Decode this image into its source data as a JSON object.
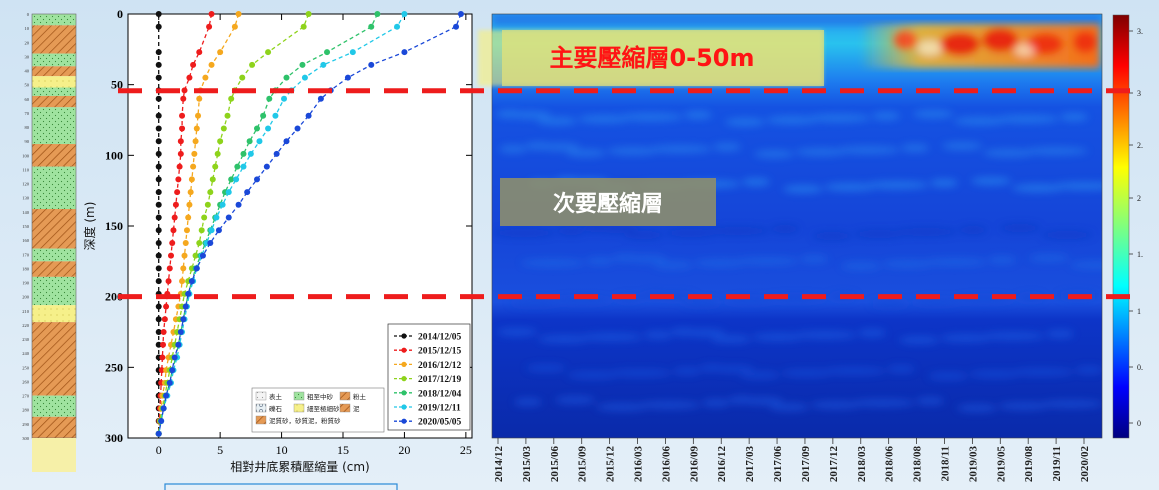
{
  "chart_data": [
    {
      "type": "line",
      "title": "",
      "xlabel": "相對井底累積壓縮量 (cm)",
      "ylabel": "深度 (m)",
      "xlim": [
        -2.5,
        25.5
      ],
      "ylim": [
        0,
        300
      ],
      "y_inverted": true,
      "xticks": [
        0,
        5,
        10,
        15,
        20,
        25
      ],
      "yticks": [
        0,
        50,
        100,
        150,
        200,
        250,
        300
      ],
      "grid": false,
      "legend_position": "bottom-right",
      "depths": [
        0,
        9,
        27,
        36,
        45,
        54,
        60,
        72,
        81,
        90,
        99,
        108,
        117,
        126,
        135,
        144,
        153,
        162,
        171,
        180,
        189,
        198,
        207,
        216,
        225,
        234,
        243,
        252,
        261,
        270,
        279,
        288,
        297
      ],
      "series": [
        {
          "name": "2014/12/05",
          "color": "#111111",
          "values": [
            0,
            0,
            0,
            0,
            0,
            0,
            0,
            0,
            0,
            0,
            0,
            0,
            0,
            0,
            0,
            0,
            0,
            0,
            0,
            0,
            0,
            0,
            0,
            0,
            0,
            0,
            0,
            0,
            0,
            0,
            0,
            0,
            0
          ]
        },
        {
          "name": "2015/12/15",
          "color": "#ee1c1c",
          "values": [
            4.3,
            4.1,
            3.3,
            2.8,
            2.5,
            2.1,
            2.0,
            1.9,
            1.9,
            1.8,
            1.8,
            1.7,
            1.6,
            1.5,
            1.4,
            1.3,
            1.2,
            1.1,
            1.0,
            0.9,
            0.8,
            0.7,
            0.6,
            0.5,
            0.4,
            0.35,
            0.3,
            0.25,
            0.2,
            0.15,
            0.1,
            0.05,
            0
          ]
        },
        {
          "name": "2016/12/12",
          "color": "#f5a81e",
          "values": [
            6.5,
            6.2,
            5.0,
            4.3,
            3.8,
            3.4,
            3.3,
            3.2,
            3.1,
            3.0,
            2.9,
            2.8,
            2.7,
            2.6,
            2.5,
            2.4,
            2.3,
            2.2,
            2.1,
            2.0,
            1.9,
            1.8,
            1.6,
            1.4,
            1.2,
            1.0,
            0.8,
            0.6,
            0.5,
            0.3,
            0.2,
            0.1,
            0
          ]
        },
        {
          "name": "2017/12/19",
          "color": "#8ed31b",
          "values": [
            12.2,
            11.8,
            8.9,
            7.6,
            6.8,
            6.2,
            5.9,
            5.6,
            5.3,
            5.0,
            4.8,
            4.6,
            4.4,
            4.2,
            4.0,
            3.7,
            3.5,
            3.3,
            3.0,
            2.7,
            2.4,
            2.1,
            1.9,
            1.7,
            1.5,
            1.3,
            1.1,
            0.9,
            0.7,
            0.5,
            0.3,
            0.1,
            0
          ]
        },
        {
          "name": "2018/12/04",
          "color": "#2ec26a",
          "values": [
            17.8,
            17.3,
            13.7,
            11.7,
            10.4,
            9.5,
            9.0,
            8.5,
            8.0,
            7.4,
            6.9,
            6.4,
            5.9,
            5.4,
            5.0,
            4.6,
            4.2,
            3.8,
            3.4,
            3.0,
            2.7,
            2.4,
            2.2,
            2.0,
            1.8,
            1.6,
            1.4,
            1.1,
            0.9,
            0.6,
            0.4,
            0.2,
            0
          ]
        },
        {
          "name": "2019/12/11",
          "color": "#20c8e8",
          "values": [
            20.0,
            19.4,
            15.8,
            13.4,
            11.9,
            10.8,
            10.2,
            9.5,
            8.9,
            8.2,
            7.5,
            6.9,
            6.3,
            5.7,
            5.2,
            4.7,
            4.3,
            3.9,
            3.5,
            3.1,
            2.8,
            2.5,
            2.3,
            2.1,
            1.9,
            1.7,
            1.5,
            1.2,
            1.0,
            0.7,
            0.4,
            0.2,
            0
          ]
        },
        {
          "name": "2020/05/05",
          "color": "#1a48d8",
          "values": [
            24.6,
            24.2,
            20.0,
            17.3,
            15.4,
            14.0,
            13.2,
            12.2,
            11.3,
            10.4,
            9.6,
            8.8,
            8.0,
            7.2,
            6.5,
            5.7,
            4.9,
            4.2,
            3.6,
            3.1,
            2.7,
            2.4,
            2.2,
            2.0,
            1.8,
            1.6,
            1.3,
            1.1,
            0.9,
            0.6,
            0.4,
            0.2,
            0
          ]
        }
      ]
    },
    {
      "type": "heatmap",
      "x_labels": [
        "2014/12",
        "2015/03",
        "2015/06",
        "2015/09",
        "2015/12",
        "2016/03",
        "2016/06",
        "2016/09",
        "2016/12",
        "2017/03",
        "2017/06",
        "2017/09",
        "2017/12",
        "2018/03",
        "2018/06",
        "2018/08",
        "2018/11",
        "2019/03",
        "2019/05",
        "2019/08",
        "2019/11",
        "2020/02"
      ],
      "colorbar_ticks": [
        "3.",
        "3",
        "2.",
        "2",
        "1.",
        "1",
        "0.",
        "0"
      ],
      "colormap": "jet"
    }
  ],
  "strata": {
    "colors": {
      "sand": "#9fe39f",
      "mud": "#e59a55",
      "silt": "#f6f08a",
      "topsoil": "#f2f2f2"
    },
    "legend": [
      {
        "label": "表土",
        "kind": "topsoil"
      },
      {
        "label": "粗至中砂",
        "kind": "sand"
      },
      {
        "label": "粉土",
        "kind": "mud"
      },
      {
        "label": "礫石",
        "kind": "gravel"
      },
      {
        "label": "細至極細砂",
        "kind": "silt"
      },
      {
        "label": "泥",
        "kind": "mud"
      },
      {
        "label": "泥質砂，砂質泥，粉質砂",
        "kind": "mud"
      }
    ],
    "layers": [
      {
        "from": 0,
        "to": 8,
        "kind": "sand"
      },
      {
        "from": 8,
        "to": 28,
        "kind": "mud"
      },
      {
        "from": 28,
        "to": 37,
        "kind": "sand"
      },
      {
        "from": 37,
        "to": 44,
        "kind": "mud"
      },
      {
        "from": 44,
        "to": 52,
        "kind": "silt"
      },
      {
        "from": 52,
        "to": 58,
        "kind": "sand"
      },
      {
        "from": 58,
        "to": 66,
        "kind": "mud"
      },
      {
        "from": 66,
        "to": 92,
        "kind": "sand"
      },
      {
        "from": 92,
        "to": 108,
        "kind": "mud"
      },
      {
        "from": 108,
        "to": 138,
        "kind": "sand"
      },
      {
        "from": 138,
        "to": 166,
        "kind": "mud"
      },
      {
        "from": 166,
        "to": 175,
        "kind": "sand"
      },
      {
        "from": 175,
        "to": 186,
        "kind": "mud"
      },
      {
        "from": 186,
        "to": 206,
        "kind": "sand"
      },
      {
        "from": 206,
        "to": 218,
        "kind": "silt"
      },
      {
        "from": 218,
        "to": 270,
        "kind": "mud"
      },
      {
        "from": 270,
        "to": 285,
        "kind": "sand"
      },
      {
        "from": 285,
        "to": 300,
        "kind": "mud"
      }
    ]
  },
  "annotations": {
    "primary_layer": "主要壓縮層0-50m",
    "secondary_layer": "次要壓縮層",
    "divider_depths": [
      55,
      200
    ],
    "divider_color": "#ee1c1c"
  }
}
